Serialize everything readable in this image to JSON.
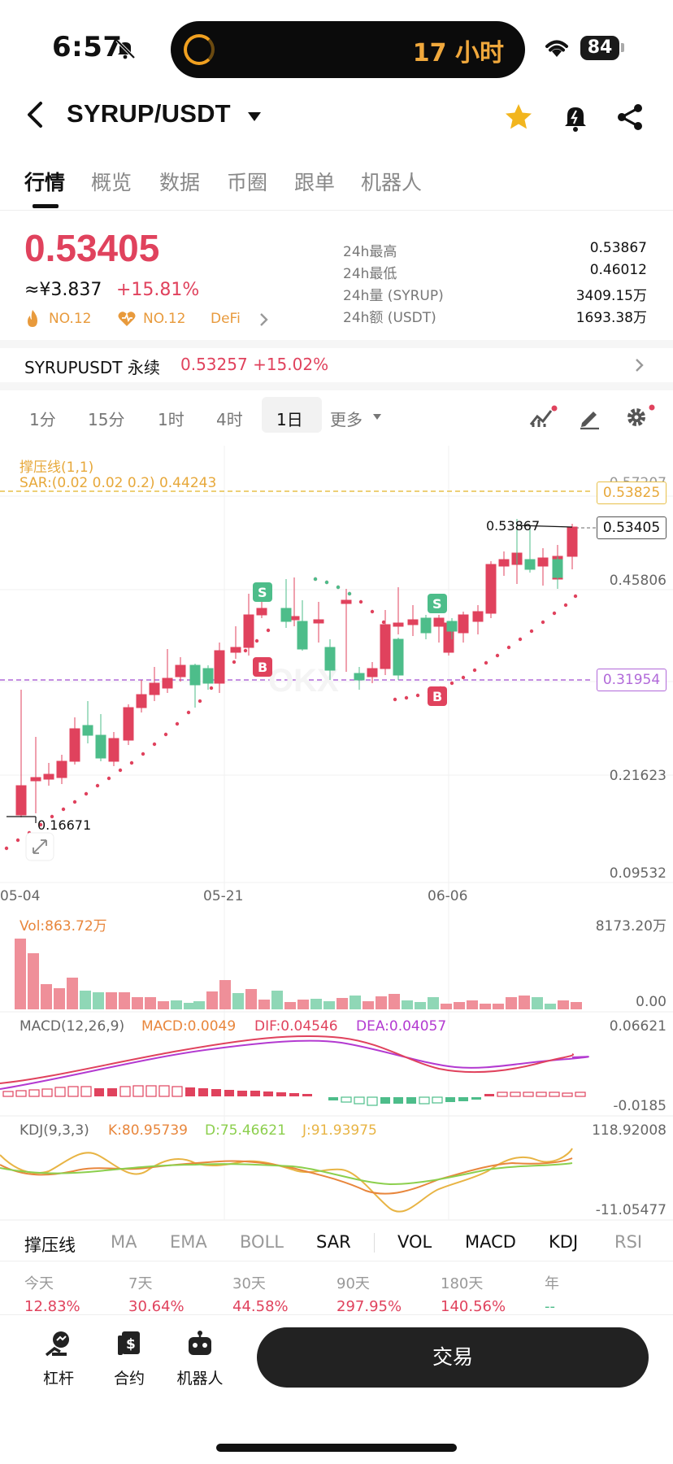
{
  "status_bar": {
    "time": "6:57",
    "activity_text": "17 小时",
    "battery": "84"
  },
  "header": {
    "pair": "SYRUP/USDT"
  },
  "tabs": [
    "行情",
    "概览",
    "数据",
    "币圈",
    "跟单",
    "机器人"
  ],
  "price": {
    "last": "0.53405",
    "cny": "≈¥3.837",
    "change": "+15.81%",
    "tags": [
      "NO.12",
      "NO.12",
      "DeFi"
    ],
    "stats": [
      {
        "label": "24h最高",
        "value": "0.53867"
      },
      {
        "label": "24h最低",
        "value": "0.46012"
      },
      {
        "label": "24h量 (SYRUP)",
        "value": "3409.15万"
      },
      {
        "label": "24h额 (USDT)",
        "value": "1693.38万"
      }
    ]
  },
  "perpetual": {
    "name": "SYRUPUSDT 永续",
    "price": "0.53257",
    "change": "+15.02%"
  },
  "intervals": [
    "1分",
    "15分",
    "1时",
    "4时",
    "1日",
    "更多"
  ],
  "chart": {
    "indicator_name": "撑压线(1,1)",
    "sar_label": "SAR:(0.02 0.02 0.2) 0.44243",
    "y_labels": [
      "0.57207",
      "0.45806",
      "0.21623",
      "0.09532"
    ],
    "resistance": "0.53825",
    "current": "0.53405",
    "support": "0.31954",
    "high_mark": "0.53867",
    "low_mark": "0.16671",
    "x_labels": [
      "05-04",
      "05-21",
      "06-06"
    ],
    "signals": [
      "S",
      "B",
      "S",
      "B"
    ],
    "watermark": "OKX"
  },
  "volume": {
    "label": "Vol:863.72万",
    "max": "8173.20万",
    "min": "0.00"
  },
  "macd": {
    "label": "MACD(12,26,9)",
    "macd": "MACD:0.0049",
    "dif": "DIF:0.04546",
    "dea": "DEA:0.04057",
    "max": "0.06621",
    "min": "-0.0185"
  },
  "kdj": {
    "label": "KDJ(9,3,3)",
    "k": "K:80.95739",
    "d": "D:75.46621",
    "j": "J:91.93975",
    "max": "118.92008",
    "min": "-11.05477"
  },
  "indicator_tabs": [
    "撑压线",
    "MA",
    "EMA",
    "BOLL",
    "SAR",
    "VOL",
    "MACD",
    "KDJ",
    "RSI"
  ],
  "performance": [
    {
      "period": "今天",
      "value": "12.83%"
    },
    {
      "period": "7天",
      "value": "30.64%"
    },
    {
      "period": "30天",
      "value": "44.58%"
    },
    {
      "period": "90天",
      "value": "297.95%"
    },
    {
      "period": "180天",
      "value": "140.56%"
    },
    {
      "period": "年",
      "value": "--"
    }
  ],
  "bottom_nav": [
    {
      "label": "杠杆"
    },
    {
      "label": "合约"
    },
    {
      "label": "机器人"
    }
  ],
  "trade_button": "交易",
  "colors": {
    "up": "#e0425d",
    "down": "#4dbd8a",
    "accent": "#e7a83a",
    "sar": "#e0425d"
  }
}
